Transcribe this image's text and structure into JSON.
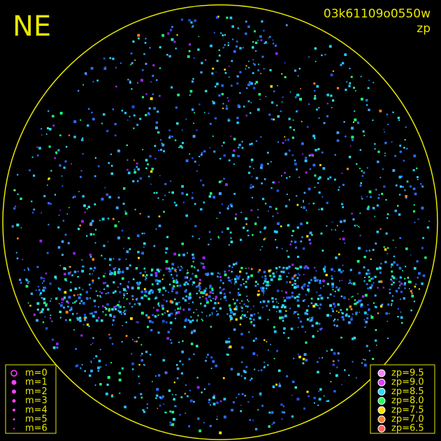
{
  "direction": "NE",
  "image_id": "03k61109o0550w",
  "mode": "zp",
  "magnitude_legend": [
    "m=0",
    "m=1",
    "m=2",
    "m=3",
    "m=4",
    "m=5",
    "m=6"
  ],
  "zp_legend": [
    {
      "label": "zp=9.5",
      "color": "#ff80ff"
    },
    {
      "label": "zp=9.0",
      "color": "#e040ff"
    },
    {
      "label": "zp=8.5",
      "color": "#20e0ff"
    },
    {
      "label": "zp=8.0",
      "color": "#20ff60"
    },
    {
      "label": "zp=7.5",
      "color": "#ffe000"
    },
    {
      "label": "zp=7.0",
      "color": "#ff8020"
    },
    {
      "label": "zp=6.5",
      "color": "#ff6060"
    }
  ]
}
